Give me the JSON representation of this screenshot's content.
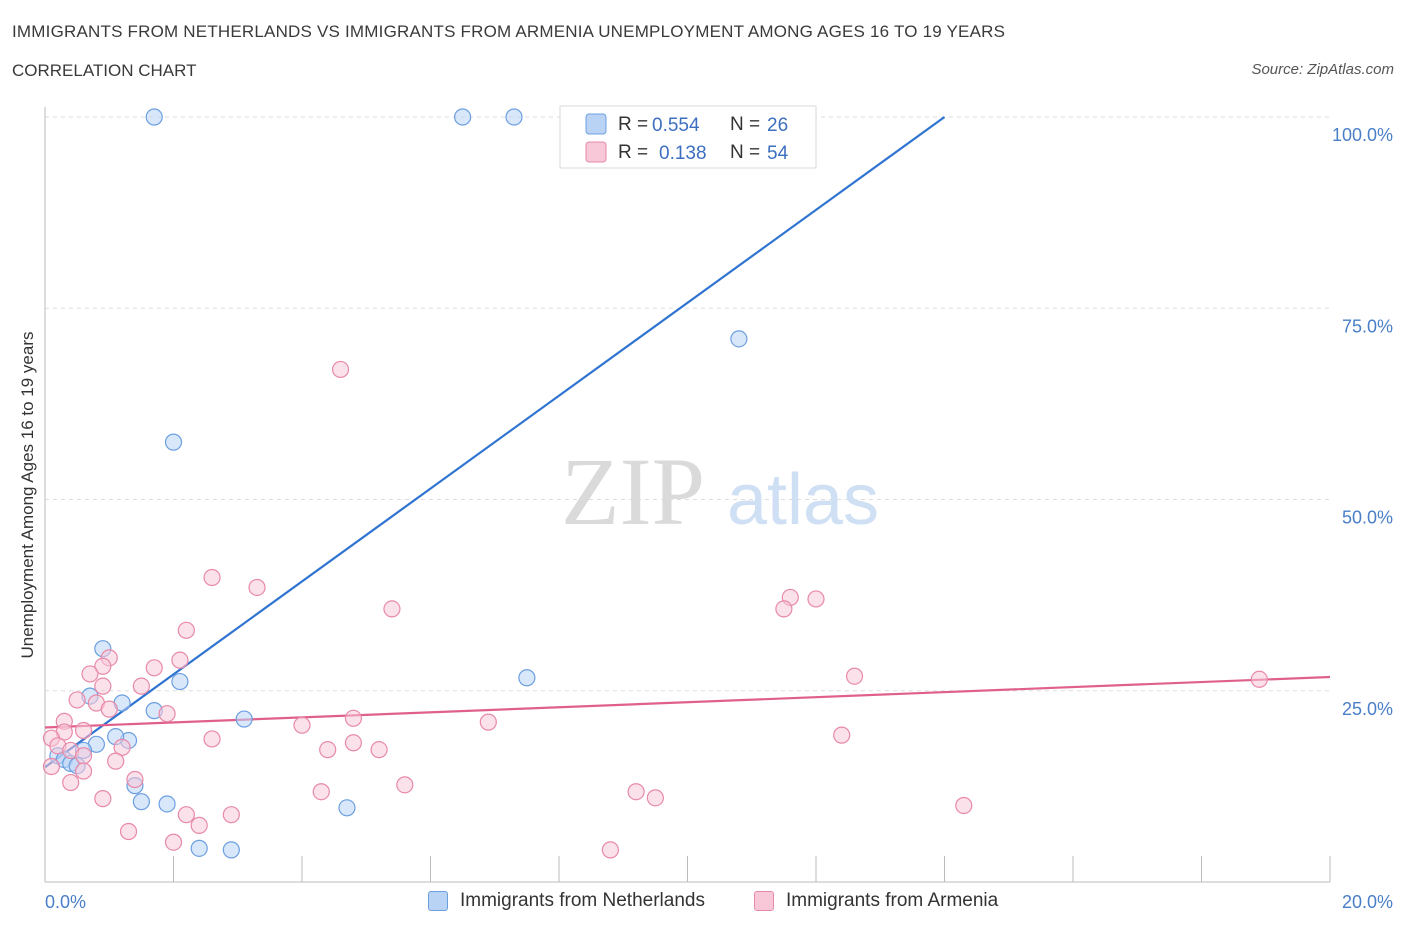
{
  "title": "IMMIGRANTS FROM NETHERLANDS VS IMMIGRANTS FROM ARMENIA UNEMPLOYMENT AMONG AGES 16 TO 19 YEARS",
  "subtitle": "CORRELATION CHART",
  "source": "Source: ZipAtlas.com",
  "watermark": {
    "zip": "ZIP",
    "atlas": "atlas"
  },
  "colors": {
    "netherlands_fill": "#b9d3f5",
    "netherlands_stroke": "#6b9fe0",
    "netherlands_line": "#2f74d0",
    "armenia_fill": "#f8c8d8",
    "armenia_stroke": "#e889a8",
    "armenia_line": "#e0608c"
  },
  "legend": {
    "r_label": "R =",
    "n_label": "N =",
    "netherlands": {
      "r": "0.554",
      "n": "26"
    },
    "armenia": {
      "r": "0.138",
      "n": "54"
    }
  },
  "chart_data": {
    "type": "scatter",
    "xlabel": "",
    "ylabel": "Unemployment Among Ages 16 to 19 years",
    "xlim": [
      0,
      20
    ],
    "ylim": [
      0,
      100
    ],
    "x_tick_labels": [
      "0.0%",
      "20.0%"
    ],
    "y_ticks": [
      25,
      50,
      75,
      100
    ],
    "y_tick_labels": [
      "25.0%",
      "50.0%",
      "75.0%",
      "100.0%"
    ],
    "grid": true,
    "legend_position": "top-center",
    "series": [
      {
        "name": "Immigrants from Netherlands",
        "points": [
          [
            1.7,
            100
          ],
          [
            6.5,
            100
          ],
          [
            7.3,
            100
          ],
          [
            10.8,
            71.0
          ],
          [
            2.0,
            57.5
          ],
          [
            0.9,
            30.5
          ],
          [
            2.1,
            26.2
          ],
          [
            7.5,
            26.7
          ],
          [
            0.7,
            24.3
          ],
          [
            1.2,
            23.4
          ],
          [
            1.7,
            22.4
          ],
          [
            3.1,
            21.3
          ],
          [
            1.3,
            18.5
          ],
          [
            1.1,
            19.0
          ],
          [
            0.8,
            18.0
          ],
          [
            0.6,
            17.2
          ],
          [
            0.2,
            16.5
          ],
          [
            0.3,
            16.0
          ],
          [
            0.4,
            15.5
          ],
          [
            1.4,
            12.6
          ],
          [
            1.5,
            10.5
          ],
          [
            1.9,
            10.2
          ],
          [
            4.7,
            9.7
          ],
          [
            2.4,
            4.4
          ],
          [
            2.9,
            4.2
          ],
          [
            0.5,
            15.2
          ]
        ],
        "trend": [
          [
            0,
            15.0
          ],
          [
            14.0,
            100
          ]
        ]
      },
      {
        "name": "Immigrants from Armenia",
        "points": [
          [
            4.6,
            67.0
          ],
          [
            2.6,
            39.8
          ],
          [
            3.3,
            38.5
          ],
          [
            5.4,
            35.7
          ],
          [
            11.6,
            37.2
          ],
          [
            12.0,
            37.0
          ],
          [
            11.5,
            35.7
          ],
          [
            2.2,
            32.9
          ],
          [
            1.0,
            29.3
          ],
          [
            2.1,
            29.0
          ],
          [
            1.7,
            28.0
          ],
          [
            0.9,
            28.2
          ],
          [
            0.7,
            27.2
          ],
          [
            12.6,
            26.9
          ],
          [
            18.9,
            26.5
          ],
          [
            0.9,
            25.6
          ],
          [
            1.5,
            25.6
          ],
          [
            0.5,
            23.8
          ],
          [
            0.8,
            23.4
          ],
          [
            1.0,
            22.6
          ],
          [
            1.9,
            22.0
          ],
          [
            4.8,
            21.4
          ],
          [
            0.3,
            21.0
          ],
          [
            6.9,
            20.9
          ],
          [
            4.0,
            20.5
          ],
          [
            0.6,
            19.8
          ],
          [
            0.3,
            19.6
          ],
          [
            2.6,
            18.7
          ],
          [
            12.4,
            19.2
          ],
          [
            0.1,
            18.8
          ],
          [
            4.8,
            18.2
          ],
          [
            0.2,
            17.8
          ],
          [
            1.2,
            17.6
          ],
          [
            4.4,
            17.3
          ],
          [
            5.2,
            17.3
          ],
          [
            0.4,
            17.2
          ],
          [
            0.6,
            16.5
          ],
          [
            1.1,
            15.8
          ],
          [
            0.1,
            15.1
          ],
          [
            0.6,
            14.5
          ],
          [
            1.4,
            13.4
          ],
          [
            0.4,
            13.0
          ],
          [
            5.6,
            12.7
          ],
          [
            4.3,
            11.8
          ],
          [
            9.2,
            11.8
          ],
          [
            9.5,
            11.0
          ],
          [
            0.9,
            10.9
          ],
          [
            2.2,
            8.8
          ],
          [
            2.9,
            8.8
          ],
          [
            2.4,
            7.4
          ],
          [
            14.3,
            10.0
          ],
          [
            1.3,
            6.6
          ],
          [
            2.0,
            5.2
          ],
          [
            8.8,
            4.2
          ]
        ],
        "trend": [
          [
            0,
            20.2
          ],
          [
            20,
            26.8
          ]
        ]
      }
    ]
  }
}
